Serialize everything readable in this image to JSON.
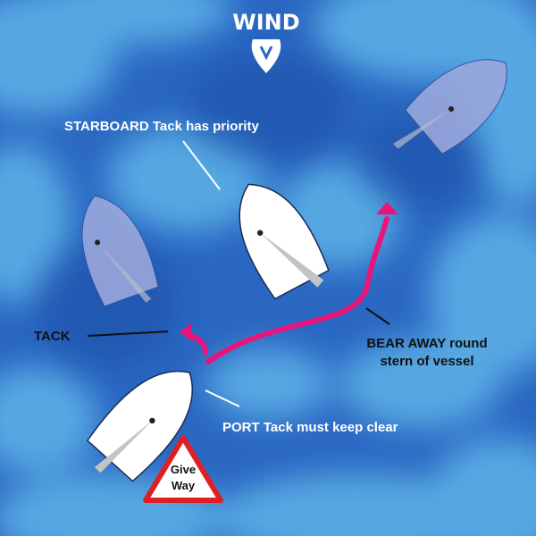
{
  "wind": {
    "label": "WIND",
    "icon": "wind-shield-arrow-icon"
  },
  "labels": {
    "starboard": "STARBOARD Tack has priority",
    "tack": "TACK",
    "bear_away_line1": "BEAR AWAY round",
    "bear_away_line2": "stern of vessel",
    "port": "PORT Tack must keep clear"
  },
  "sign": {
    "line1": "Give",
    "line2": "Way",
    "icon": "give-way-triangle-icon"
  },
  "colors": {
    "sea_dark": "#2a67c2",
    "sea_light": "#5fb4e8",
    "arrow": "#e8157a",
    "boat_white": "#ffffff",
    "boat_ghost": "#9aa7dc",
    "sail": "#bdbdbd",
    "sign_red": "#e02020",
    "text_dark": "#111111",
    "text_light": "#ffffff"
  }
}
